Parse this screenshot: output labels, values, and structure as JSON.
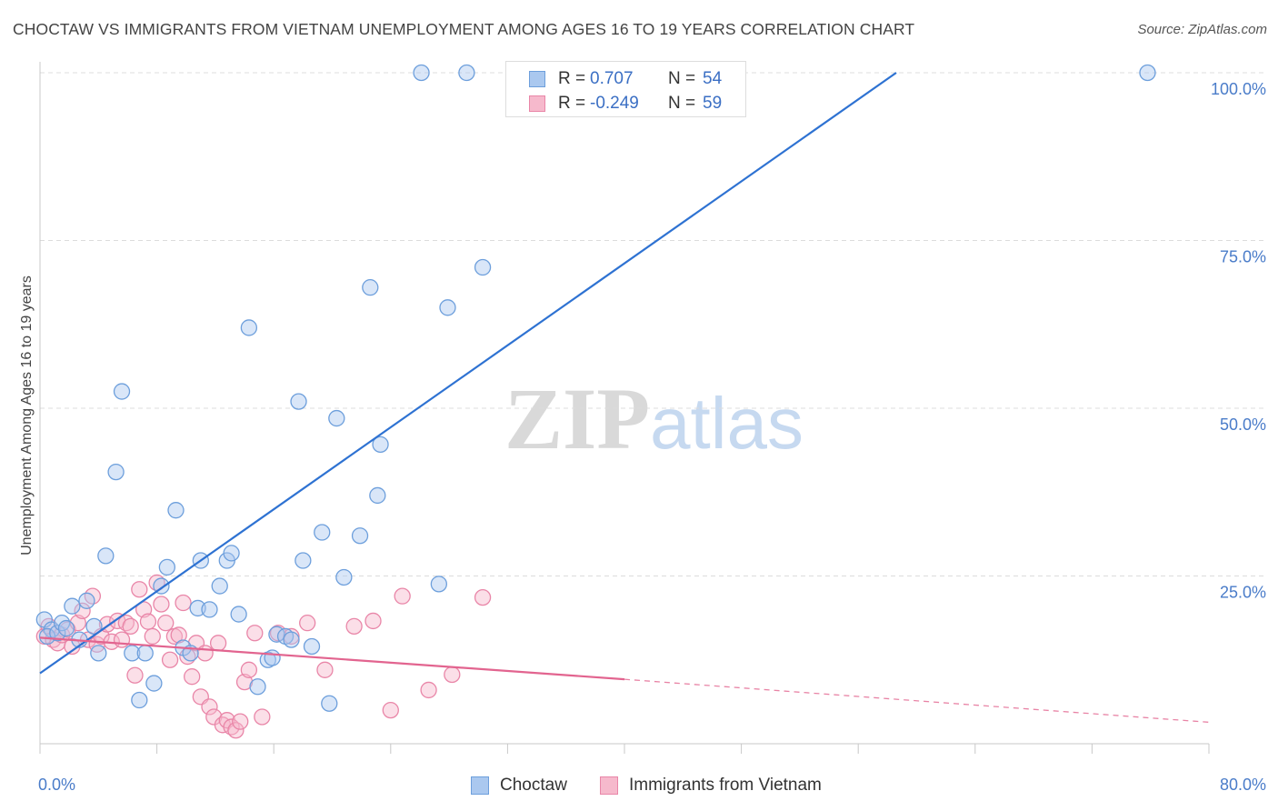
{
  "title": "CHOCTAW VS IMMIGRANTS FROM VIETNAM UNEMPLOYMENT AMONG AGES 16 TO 19 YEARS CORRELATION CHART",
  "source": "Source: ZipAtlas.com",
  "watermark": {
    "zip": "ZIP",
    "atlas": "atlas"
  },
  "colors": {
    "blue_fill": "#aac8ef",
    "blue_stroke": "#6d9fdc",
    "blue_line": "#2e72d2",
    "pink_fill": "#f6b9cc",
    "pink_stroke": "#e986a8",
    "pink_line": "#e2648f",
    "grid": "#dcdcdc",
    "tick_label": "#4a7cc9"
  },
  "legend_top": [
    {
      "r_label": "R =",
      "r_value": "0.707",
      "n_label": "N =",
      "n_value": "54"
    },
    {
      "r_label": "R =",
      "r_value": "-0.249",
      "n_label": "N =",
      "n_value": "59"
    }
  ],
  "legend_bottom": [
    "Choctaw",
    "Immigrants from Vietnam"
  ],
  "chart_data": {
    "type": "scatter",
    "title": "CHOCTAW VS IMMIGRANTS FROM VIETNAM UNEMPLOYMENT AMONG AGES 16 TO 19 YEARS CORRELATION CHART",
    "xlabel": "",
    "ylabel": "Unemployment Among Ages 16 to 19 years",
    "xlim": [
      0,
      80
    ],
    "ylim": [
      0,
      100
    ],
    "x_tick_labels": [
      "0.0%",
      "80.0%"
    ],
    "y_ticks": [
      25,
      50,
      75,
      100
    ],
    "y_tick_labels": [
      "25.0%",
      "50.0%",
      "75.0%",
      "100.0%"
    ],
    "grid": true,
    "legend_placement": "top-center",
    "series": [
      {
        "name": "Choctaw",
        "r": 0.707,
        "n": 54,
        "trend": {
          "x0": 0,
          "y0": 10.5,
          "x1": 58.6,
          "y1": 100,
          "extend_dashed": false
        },
        "points": [
          [
            0.3,
            18.5
          ],
          [
            0.8,
            17
          ],
          [
            0.5,
            16
          ],
          [
            1.2,
            16.5
          ],
          [
            1.5,
            18
          ],
          [
            1.8,
            17.2
          ],
          [
            2.2,
            20.5
          ],
          [
            3.2,
            21.3
          ],
          [
            2.7,
            15.5
          ],
          [
            3.7,
            17.5
          ],
          [
            4.0,
            13.5
          ],
          [
            4.5,
            28
          ],
          [
            5.2,
            40.5
          ],
          [
            5.6,
            52.5
          ],
          [
            6.3,
            13.5
          ],
          [
            6.8,
            6.5
          ],
          [
            7.2,
            13.5
          ],
          [
            7.8,
            9.0
          ],
          [
            8.3,
            23.5
          ],
          [
            8.7,
            26.3
          ],
          [
            9.3,
            34.8
          ],
          [
            9.8,
            14.3
          ],
          [
            10.3,
            13.5
          ],
          [
            10.8,
            20.2
          ],
          [
            11.0,
            27.3
          ],
          [
            11.6,
            20.0
          ],
          [
            12.3,
            23.5
          ],
          [
            12.8,
            27.3
          ],
          [
            13.1,
            28.4
          ],
          [
            13.6,
            19.3
          ],
          [
            14.3,
            62
          ],
          [
            14.9,
            8.5
          ],
          [
            15.6,
            12.5
          ],
          [
            15.9,
            12.8
          ],
          [
            16.2,
            16.3
          ],
          [
            16.8,
            16.0
          ],
          [
            17.2,
            15.5
          ],
          [
            17.7,
            51
          ],
          [
            18.0,
            27.3
          ],
          [
            18.6,
            14.5
          ],
          [
            19.3,
            31.5
          ],
          [
            19.8,
            6.0
          ],
          [
            20.3,
            48.5
          ],
          [
            20.8,
            24.8
          ],
          [
            21.9,
            31.0
          ],
          [
            22.6,
            68.0
          ],
          [
            23.1,
            37.0
          ],
          [
            23.3,
            44.6
          ],
          [
            26.1,
            100
          ],
          [
            27.3,
            23.8
          ],
          [
            27.9,
            65.0
          ],
          [
            29.2,
            100
          ],
          [
            30.3,
            71.0
          ],
          [
            75.8,
            100
          ]
        ]
      },
      {
        "name": "Immigrants from Vietnam",
        "r": -0.249,
        "n": 59,
        "trend": {
          "x0": 0,
          "y0": 15.8,
          "x1": 40,
          "y1": 9.6,
          "dash_to_x": 80,
          "dash_to_y": 3.2
        },
        "points": [
          [
            0.3,
            16.0
          ],
          [
            0.6,
            17.5
          ],
          [
            0.9,
            15.5
          ],
          [
            1.2,
            15.0
          ],
          [
            1.5,
            16.2
          ],
          [
            1.9,
            17.0
          ],
          [
            2.2,
            14.5
          ],
          [
            2.6,
            18.0
          ],
          [
            2.9,
            19.8
          ],
          [
            3.3,
            15.5
          ],
          [
            3.6,
            22.0
          ],
          [
            3.9,
            14.8
          ],
          [
            4.2,
            16.0
          ],
          [
            4.6,
            17.8
          ],
          [
            4.9,
            15.2
          ],
          [
            5.3,
            18.3
          ],
          [
            5.6,
            15.5
          ],
          [
            5.9,
            18.0
          ],
          [
            6.2,
            17.5
          ],
          [
            6.5,
            10.2
          ],
          [
            6.8,
            23.0
          ],
          [
            7.1,
            20.0
          ],
          [
            7.4,
            18.2
          ],
          [
            7.7,
            16.0
          ],
          [
            8.0,
            24.0
          ],
          [
            8.3,
            20.8
          ],
          [
            8.6,
            18.0
          ],
          [
            8.9,
            12.5
          ],
          [
            9.2,
            16.0
          ],
          [
            9.5,
            16.2
          ],
          [
            9.8,
            21.0
          ],
          [
            10.1,
            13.0
          ],
          [
            10.4,
            10.0
          ],
          [
            10.7,
            15.0
          ],
          [
            11.0,
            7.0
          ],
          [
            11.3,
            13.5
          ],
          [
            11.6,
            5.5
          ],
          [
            11.9,
            4.0
          ],
          [
            12.2,
            15.0
          ],
          [
            12.5,
            2.8
          ],
          [
            12.8,
            3.5
          ],
          [
            13.1,
            2.5
          ],
          [
            13.4,
            2.0
          ],
          [
            13.7,
            3.3
          ],
          [
            14.0,
            9.2
          ],
          [
            14.3,
            11.0
          ],
          [
            14.7,
            16.5
          ],
          [
            15.2,
            4.0
          ],
          [
            16.3,
            16.5
          ],
          [
            17.2,
            16.0
          ],
          [
            18.3,
            18.0
          ],
          [
            19.5,
            11.0
          ],
          [
            21.5,
            17.5
          ],
          [
            22.8,
            18.3
          ],
          [
            24.0,
            5.0
          ],
          [
            24.8,
            22.0
          ],
          [
            26.6,
            8.0
          ],
          [
            28.2,
            10.3
          ],
          [
            30.3,
            21.8
          ]
        ]
      }
    ]
  }
}
